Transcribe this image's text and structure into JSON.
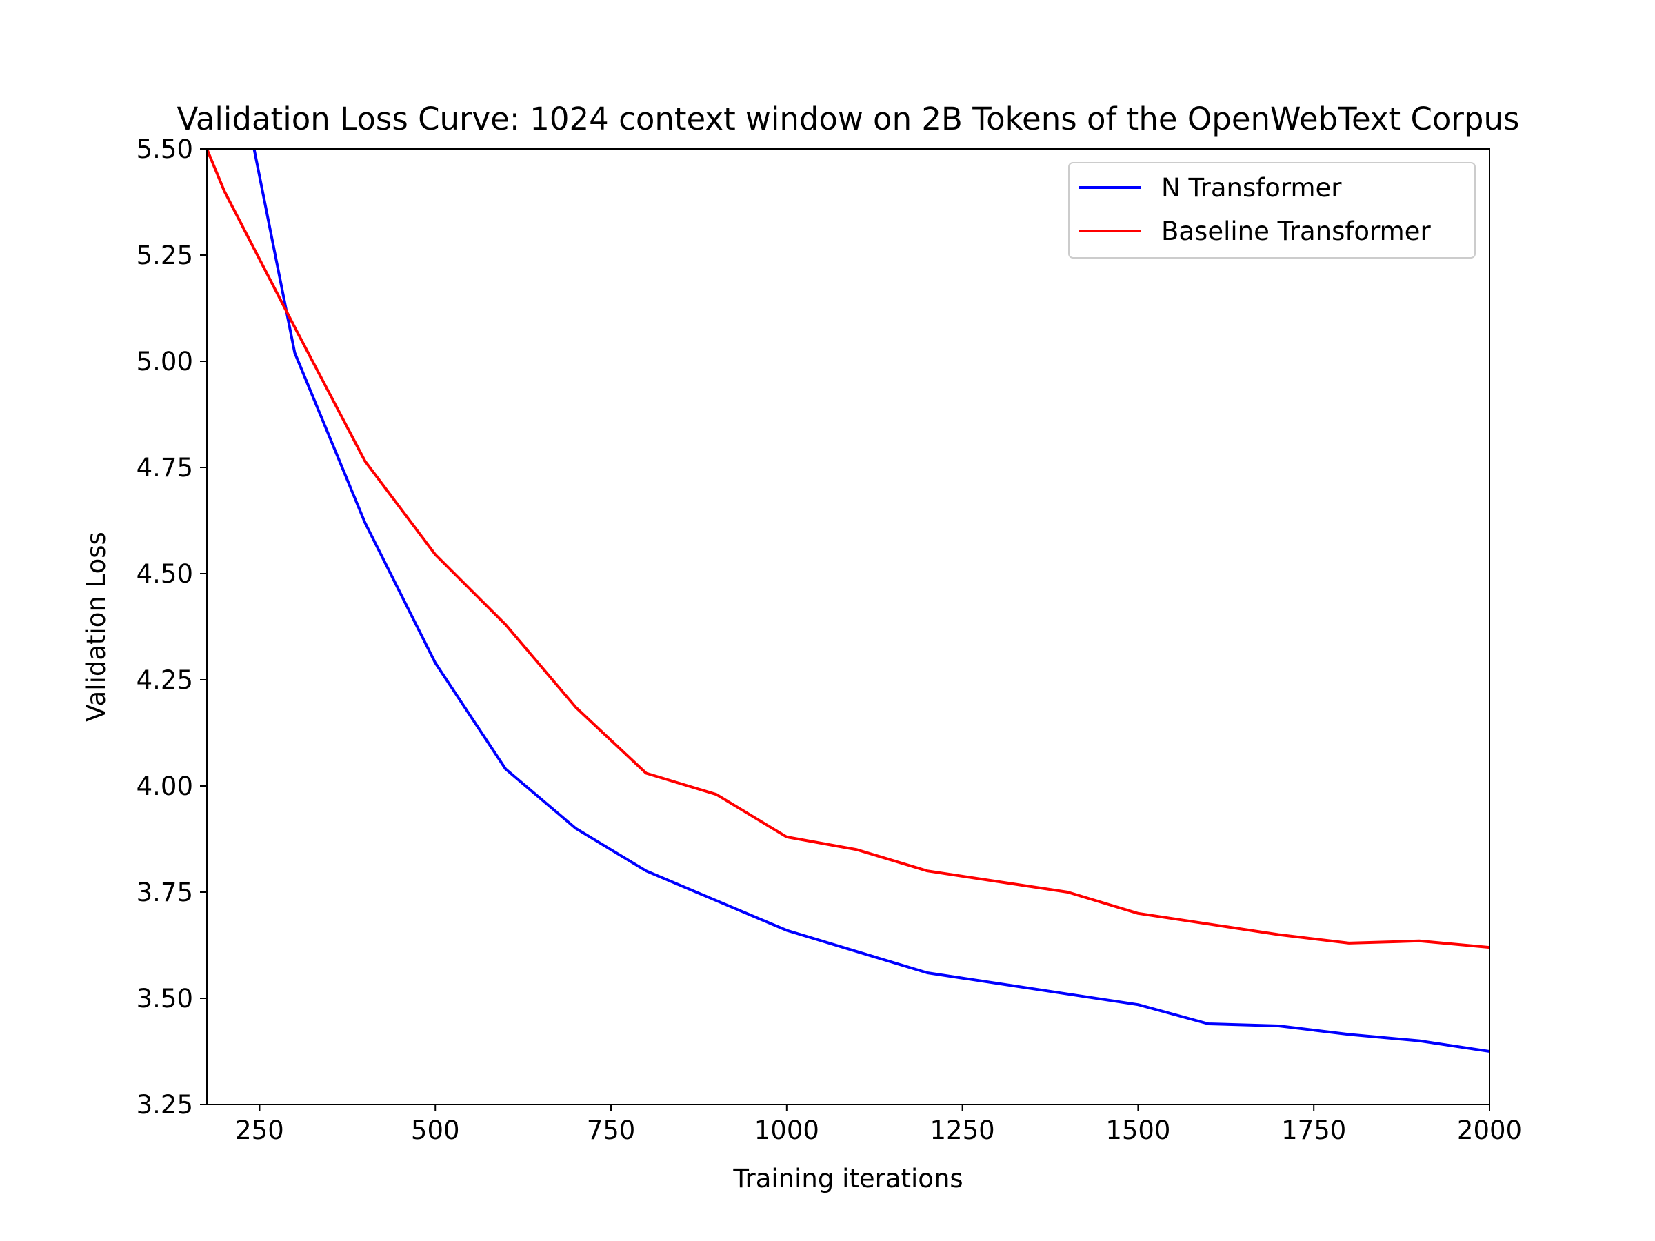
{
  "chart_data": {
    "type": "line",
    "title": "Validation Loss Curve: 1024 context window on 2B Tokens of the OpenWebText Corpus",
    "xlabel": "Training iterations",
    "ylabel": "Validation Loss",
    "xlim": [
      175,
      2000
    ],
    "ylim": [
      3.25,
      5.5
    ],
    "xticks": [
      250,
      500,
      750,
      1000,
      1250,
      1500,
      1750,
      2000
    ],
    "yticks": [
      3.25,
      3.5,
      3.75,
      4.0,
      4.25,
      4.5,
      4.75,
      5.0,
      5.25,
      5.5
    ],
    "ytick_labels": [
      "3.25",
      "3.50",
      "3.75",
      "4.00",
      "4.25",
      "4.50",
      "4.75",
      "5.00",
      "5.25",
      "5.50"
    ],
    "grid": false,
    "legend_position": "top-right",
    "series": [
      {
        "name": "N Transformer",
        "color": "#0000ff",
        "x": [
          200,
          300,
          400,
          500,
          600,
          700,
          800,
          900,
          1000,
          1100,
          1200,
          1300,
          1400,
          1500,
          1600,
          1700,
          1800,
          1900,
          2000
        ],
        "y": [
          5.85,
          5.02,
          4.62,
          4.29,
          4.04,
          3.9,
          3.8,
          3.73,
          3.66,
          3.61,
          3.56,
          3.535,
          3.51,
          3.485,
          3.44,
          3.435,
          3.415,
          3.4,
          3.375
        ]
      },
      {
        "name": "Baseline Transformer",
        "color": "#ff0000",
        "x": [
          175,
          200,
          300,
          400,
          500,
          600,
          700,
          800,
          900,
          1000,
          1100,
          1200,
          1300,
          1400,
          1500,
          1600,
          1700,
          1800,
          1900,
          2000
        ],
        "y": [
          5.5,
          5.4,
          5.08,
          4.765,
          4.545,
          4.38,
          4.185,
          4.03,
          3.98,
          3.88,
          3.85,
          3.8,
          3.775,
          3.75,
          3.7,
          3.675,
          3.65,
          3.63,
          3.635,
          3.62
        ]
      }
    ]
  }
}
